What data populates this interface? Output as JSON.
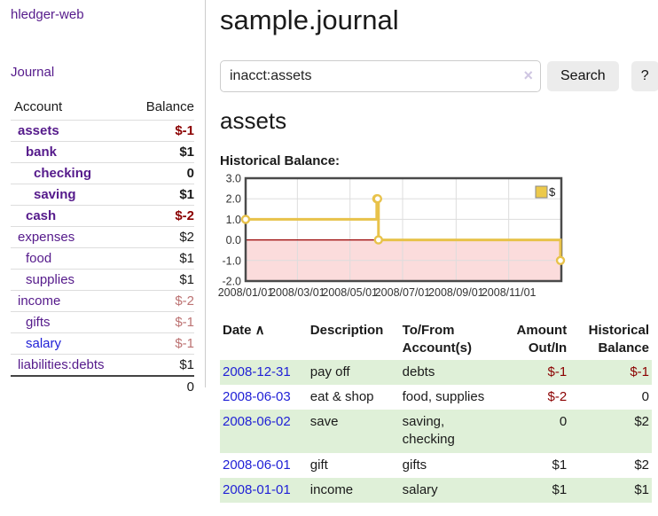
{
  "app": {
    "title": "hledger-web",
    "nav": {
      "journal": "Journal"
    }
  },
  "sidebar": {
    "header": {
      "account": "Account",
      "balance": "Balance"
    },
    "accounts": [
      {
        "name": "assets",
        "depth": 1,
        "bold": true,
        "name_color": "purple",
        "balance": "$-1",
        "balance_color": "red"
      },
      {
        "name": "bank",
        "depth": 2,
        "bold": true,
        "name_color": "purple",
        "balance": "$1",
        "balance_color": "black"
      },
      {
        "name": "checking",
        "depth": 3,
        "bold": true,
        "name_color": "purple",
        "balance": "0",
        "balance_color": "black"
      },
      {
        "name": "saving",
        "depth": 3,
        "bold": true,
        "name_color": "purple",
        "balance": "$1",
        "balance_color": "black"
      },
      {
        "name": "cash",
        "depth": 2,
        "bold": true,
        "name_color": "purple",
        "balance": "$-2",
        "balance_color": "red"
      },
      {
        "name": "expenses",
        "depth": 1,
        "bold": false,
        "name_color": "purple",
        "balance": "$2",
        "balance_color": "black"
      },
      {
        "name": "food",
        "depth": 2,
        "bold": false,
        "name_color": "purple",
        "balance": "$1",
        "balance_color": "black"
      },
      {
        "name": "supplies",
        "depth": 2,
        "bold": false,
        "name_color": "purple",
        "balance": "$1",
        "balance_color": "black"
      },
      {
        "name": "income",
        "depth": 1,
        "bold": false,
        "name_color": "purple",
        "balance": "$-2",
        "balance_color": "rose"
      },
      {
        "name": "gifts",
        "depth": 2,
        "bold": false,
        "name_color": "purple",
        "balance": "$-1",
        "balance_color": "rose"
      },
      {
        "name": "salary",
        "depth": 2,
        "bold": false,
        "name_color": "blue",
        "balance": "$-1",
        "balance_color": "rose"
      },
      {
        "name": "liabilities:debts",
        "depth": 1,
        "bold": false,
        "name_color": "purple",
        "balance": "$1",
        "balance_color": "black"
      }
    ],
    "total": "0"
  },
  "main": {
    "title": "sample.journal",
    "search": {
      "value": "inacct:assets",
      "clear_glyph": "×",
      "button_label": "Search",
      "help_label": "?"
    },
    "account_heading": "assets",
    "chart_label": "Historical Balance:"
  },
  "chart_data": {
    "type": "line",
    "title": "Historical Balance:",
    "step": true,
    "xlim": [
      "2008-01-01",
      "2009-01-01"
    ],
    "ylim": [
      -2,
      3
    ],
    "x_ticks": [
      "2008/01/01",
      "2008/03/01",
      "2008/05/01",
      "2008/07/01",
      "2008/09/01",
      "2008/11/01"
    ],
    "y_ticks": [
      3.0,
      2.0,
      1.0,
      0.0,
      -1.0,
      -2.0
    ],
    "legend": {
      "label": "$",
      "position": "top-right"
    },
    "grid": true,
    "series": [
      {
        "name": "$",
        "points": [
          {
            "x": "2008-01-01",
            "y": 1
          },
          {
            "x": "2008-06-01",
            "y": 2
          },
          {
            "x": "2008-06-02",
            "y": 2
          },
          {
            "x": "2008-06-03",
            "y": 0
          },
          {
            "x": "2008-12-31",
            "y": -1
          }
        ]
      }
    ]
  },
  "register": {
    "headers": [
      {
        "lines": [
          "Date ∧"
        ],
        "align": "left"
      },
      {
        "lines": [
          "Description"
        ],
        "align": "left"
      },
      {
        "lines": [
          "To/From",
          "Account(s)"
        ],
        "align": "left"
      },
      {
        "lines": [
          "Amount",
          "Out/In"
        ],
        "align": "right"
      },
      {
        "lines": [
          "Historical",
          "Balance"
        ],
        "align": "right"
      }
    ],
    "rows": [
      {
        "date": "2008-12-31",
        "description": "pay off",
        "accounts": "debts",
        "amount": "$-1",
        "amount_color": "red",
        "balance": "$-1",
        "balance_color": "red"
      },
      {
        "date": "2008-06-03",
        "description": "eat & shop",
        "accounts": "food, supplies",
        "amount": "$-2",
        "amount_color": "red",
        "balance": "0",
        "balance_color": "black"
      },
      {
        "date": "2008-06-02",
        "description": "save",
        "accounts": "saving, checking",
        "amount": "0",
        "amount_color": "black",
        "balance": "$2",
        "balance_color": "black"
      },
      {
        "date": "2008-06-01",
        "description": "gift",
        "accounts": "gifts",
        "amount": "$1",
        "amount_color": "black",
        "balance": "$2",
        "balance_color": "black"
      },
      {
        "date": "2008-01-01",
        "description": "income",
        "accounts": "salary",
        "amount": "$1",
        "amount_color": "black",
        "balance": "$1",
        "balance_color": "black"
      }
    ]
  },
  "colors": {
    "purple": "#551a8b",
    "blue": "#1f1fd6",
    "red": "#8b0000",
    "rose": "#bc7272",
    "black": "#1a1a1a",
    "row_green": "#dff0d8",
    "gold": "#e8c24a",
    "gold_fill": "#ecc94b",
    "pink": "#fbdcdc",
    "zero_line": "#990000",
    "grid": "#dddddd",
    "plot_border": "#4a4a4a",
    "legend_border": "#888888"
  }
}
